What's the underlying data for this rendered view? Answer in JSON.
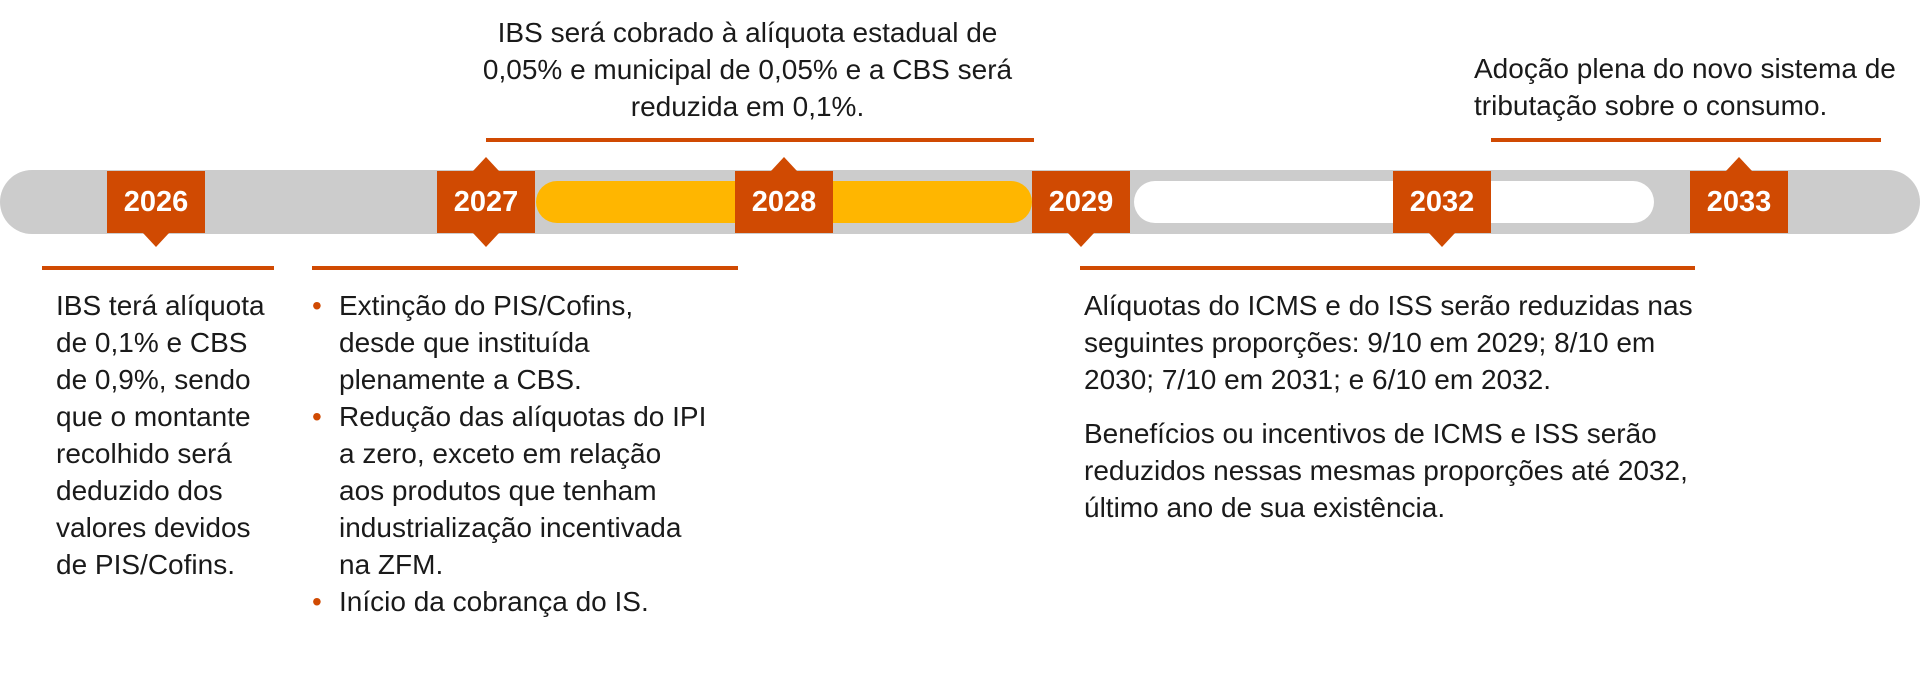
{
  "colors": {
    "accent": "#d04a02",
    "track": "#cccccc",
    "period_2027_2028": "#ffb600",
    "period_2029_2032": "#ffffff"
  },
  "timeline": {
    "years": [
      "2026",
      "2027",
      "2028",
      "2029",
      "2032",
      "2033"
    ]
  },
  "notes": {
    "y2026": "IBS terá alíquota de 0,1% e CBS de 0,9%, sendo que o montante recolhido será deduzido dos valores devidos de PIS/Cofins.",
    "y2027_bullets": [
      "Extinção do PIS/Cofins, desde que instituída plenamente a CBS.",
      "Redução das alíquotas do IPI a zero, exceto em relação aos produtos que tenham industrialização incentivada na ZFM.",
      "Início da cobrança do IS."
    ],
    "y2028": "IBS será cobrado à alíquota estadual de 0,05% e municipal de 0,05% e a CBS será reduzida em 0,1%.",
    "y2029_2032": [
      "Alíquotas do ICMS e do ISS serão reduzidas nas seguintes proporções: 9/10 em 2029; 8/10 em 2030; 7/10 em 2031; e 6/10 em 2032.",
      "Benefícios ou incentivos de ICMS e ISS serão reduzidos nessas mesmas proporções até 2032, último ano de sua existência."
    ],
    "y2033": "Adoção plena do novo sistema de tributação sobre o consumo."
  }
}
